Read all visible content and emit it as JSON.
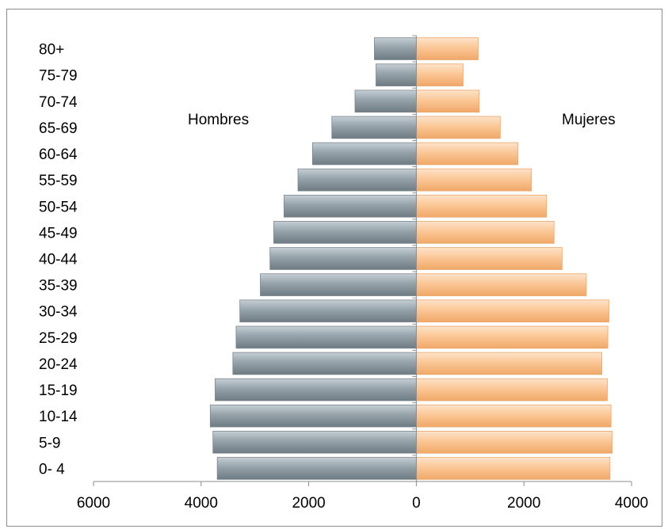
{
  "chart_data": {
    "type": "bar",
    "orientation": "horizontal",
    "title": "",
    "xlabel": "",
    "ylabel": "",
    "categories": [
      "0- 4",
      "5-9",
      "10-14",
      "15-19",
      "20-24",
      "25-29",
      "30-34",
      "35-39",
      "40-44",
      "45-49",
      "50-54",
      "55-59",
      "60-64",
      "65-69",
      "70-74",
      "75-79",
      "80+"
    ],
    "series": [
      {
        "name": "Hombres",
        "color": "#8e9ba3",
        "values": [
          3700,
          3780,
          3830,
          3740,
          3410,
          3350,
          3280,
          2900,
          2720,
          2650,
          2460,
          2200,
          1930,
          1570,
          1140,
          750,
          780
        ]
      },
      {
        "name": "Mujeres",
        "color": "#fbc796",
        "values": [
          3600,
          3640,
          3620,
          3550,
          3450,
          3560,
          3580,
          3160,
          2710,
          2560,
          2420,
          2140,
          1890,
          1560,
          1170,
          870,
          1150
        ]
      }
    ],
    "xlim": [
      -6000,
      4000
    ],
    "xticks": [
      -6000,
      -4000,
      -2000,
      0,
      2000,
      4000
    ],
    "xtick_labels": [
      "6000",
      "4000",
      "2000",
      "0",
      "2000",
      "4000"
    ],
    "grid": false,
    "legend": "none"
  }
}
